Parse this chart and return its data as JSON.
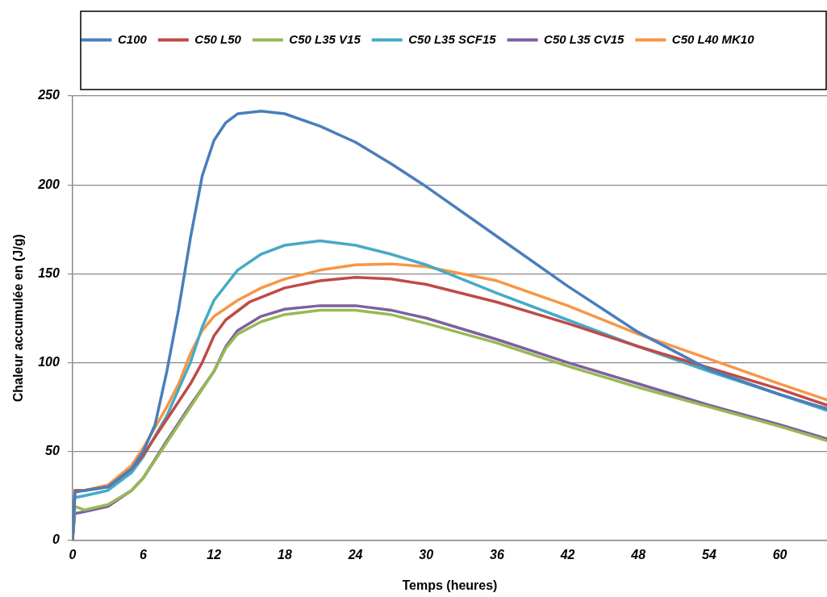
{
  "chart_data": {
    "type": "line",
    "xlabel": "Temps (heures)",
    "ylabel": "Chaleur accumulée en (J/g)",
    "xlim": [
      0,
      64
    ],
    "xticks": [
      0,
      6,
      12,
      18,
      24,
      30,
      36,
      42,
      48,
      54,
      60
    ],
    "ylim": [
      0,
      250
    ],
    "yticks": [
      0,
      50,
      100,
      150,
      200,
      250
    ],
    "grid": "y",
    "legend": "top",
    "marker": "none",
    "line_style": "solid",
    "series": [
      {
        "name": "C100",
        "color": "#4a7ebb",
        "x": [
          0,
          0.2,
          1,
          3,
          5,
          6,
          7,
          8,
          9,
          10,
          11,
          12,
          13,
          14,
          16,
          18,
          21,
          24,
          27,
          30,
          36,
          42,
          48,
          54,
          60,
          64
        ],
        "values": [
          0,
          27,
          28,
          30,
          40,
          50,
          65,
          95,
          130,
          170,
          205,
          225,
          235,
          240,
          241.5,
          240,
          233,
          224,
          212,
          199,
          171,
          143,
          117,
          96,
          82,
          74
        ]
      },
      {
        "name": "C50 L50",
        "color": "#be4b48",
        "x": [
          0,
          0.2,
          1,
          3,
          5,
          6,
          8,
          10,
          11,
          12,
          13,
          15,
          18,
          21,
          24,
          27,
          30,
          36,
          42,
          48,
          54,
          60,
          64
        ],
        "values": [
          0,
          28,
          28,
          30,
          40,
          48,
          68,
          88,
          100,
          115,
          124,
          134,
          142,
          146,
          148,
          147,
          144,
          134,
          122,
          109,
          97,
          85,
          76
        ]
      },
      {
        "name": "C50 L35 V15",
        "color": "#98b954",
        "x": [
          0,
          0.2,
          1,
          3,
          5,
          6,
          8,
          10,
          12,
          13,
          14,
          16,
          18,
          21,
          24,
          27,
          30,
          36,
          42,
          48,
          54,
          60,
          64
        ],
        "values": [
          0,
          19,
          17,
          20,
          28,
          35,
          55,
          75,
          95,
          108,
          116,
          123,
          127,
          129.5,
          129.5,
          127,
          122,
          111,
          98,
          86,
          75,
          64,
          56
        ]
      },
      {
        "name": "C50 L35 SCF15",
        "color": "#46aac5",
        "x": [
          0,
          0.2,
          1,
          3,
          5,
          6,
          8,
          10,
          11,
          12,
          14,
          16,
          18,
          21,
          24,
          27,
          30,
          36,
          42,
          48,
          54,
          60,
          64
        ],
        "values": [
          0,
          24,
          25,
          28,
          38,
          47,
          70,
          100,
          120,
          135,
          152,
          161,
          166,
          168.5,
          166,
          161,
          155,
          139,
          124,
          109,
          95,
          82,
          73
        ]
      },
      {
        "name": "C50 L35 CV15",
        "color": "#7d60a0",
        "x": [
          0,
          0.2,
          1,
          3,
          5,
          6,
          8,
          10,
          12,
          13,
          14,
          16,
          18,
          21,
          24,
          27,
          30,
          36,
          42,
          48,
          54,
          60,
          64
        ],
        "values": [
          0,
          15,
          16,
          19,
          28,
          35,
          56,
          76,
          95,
          109,
          118,
          126,
          130,
          132,
          132,
          129.5,
          125,
          113,
          100,
          88,
          76,
          65,
          57
        ]
      },
      {
        "name": "C50 L40 MK10",
        "color": "#f79646",
        "x": [
          0,
          0.2,
          1,
          3,
          5,
          6,
          8,
          9,
          10,
          11,
          12,
          14,
          16,
          18,
          21,
          24,
          27,
          30,
          36,
          42,
          48,
          54,
          60,
          64
        ],
        "values": [
          0,
          28,
          28,
          31,
          42,
          52,
          75,
          88,
          105,
          118,
          126,
          135,
          142,
          147,
          152,
          155,
          155.5,
          154,
          146,
          132,
          116,
          102,
          88,
          79
        ]
      }
    ]
  }
}
